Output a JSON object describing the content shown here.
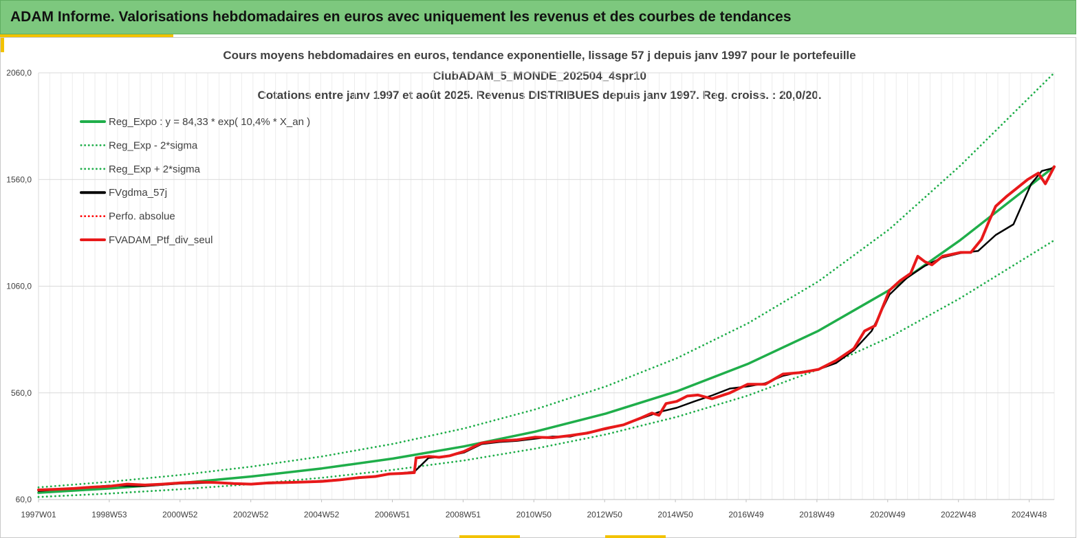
{
  "banner": {
    "title": "ADAM Informe. Valorisations hebdomadaires en euros avec uniquement les revenus et des courbes de tendances"
  },
  "colors": {
    "banner_bg": "#7dc87e",
    "accent": "#f2c200",
    "trend": "#1fae4a",
    "gdma": "#000000",
    "perf": "#ff0000",
    "ptf": "#e8191a"
  },
  "chart_data": {
    "type": "line",
    "title_lines": [
      "Cours moyens hebdomadaires  en euros, tendance exponentielle, lissage 57 j depuis janv 1997 pour le portefeuille",
      "ClubADAM_5_MONDE_202504_4spr10",
      "Cotations  entre janv 1997 et août 2025. Revenus DISTRIBUES depuis janv 1997. Reg. croiss. : 20,0/20."
    ],
    "x_tick_labels": [
      "1997W01",
      "1998W53",
      "2000W52",
      "2002W52",
      "2004W52",
      "2006W51",
      "2008W51",
      "2010W50",
      "2012W50",
      "2014W50",
      "2016W49",
      "2018W49",
      "2020W49",
      "2022W48",
      "2024W48"
    ],
    "x_range": [
      1997.0,
      2025.65
    ],
    "y_ticks": [
      60,
      560,
      1060,
      1560,
      2060
    ],
    "y_tick_labels": [
      "60,0",
      "560,0",
      "1060,0",
      "1560,0",
      "2060,0"
    ],
    "ylim": [
      60,
      2060
    ],
    "grid": true,
    "legend_position": "top-left",
    "series": [
      {
        "name": "Reg_Expo : y = 84,33 * exp( 10,4% *  X_an )",
        "style": "solid",
        "color": "#1fae4a",
        "x": [
          1997.0,
          1999.0,
          2001.0,
          2003.0,
          2005.0,
          2007.0,
          2009.0,
          2011.0,
          2013.0,
          2015.0,
          2017.0,
          2019.0,
          2021.0,
          2023.0,
          2025.65
        ],
        "y": [
          92,
          112,
          137,
          168,
          206,
          252,
          309,
          378,
          463,
          567,
          695,
          851,
          1042,
          1276,
          1620
        ]
      },
      {
        "name": "Reg_Exp - 2*sigma",
        "style": "dotted",
        "color": "#1fae4a",
        "x": [
          1997.0,
          1999.0,
          2001.0,
          2003.0,
          2005.0,
          2007.0,
          2009.0,
          2011.0,
          2013.0,
          2015.0,
          2017.0,
          2019.0,
          2021.0,
          2023.0,
          2025.65
        ],
        "y": [
          72,
          88,
          108,
          132,
          162,
          199,
          243,
          298,
          365,
          447,
          547,
          670,
          820,
          1004,
          1275
        ]
      },
      {
        "name": "Reg_Exp + 2*sigma",
        "style": "dotted",
        "color": "#1fae4a",
        "x": [
          1997.0,
          1999.0,
          2001.0,
          2003.0,
          2005.0,
          2007.0,
          2009.0,
          2011.0,
          2013.0,
          2015.0,
          2017.0,
          2019.0,
          2021.0,
          2023.0,
          2025.65
        ],
        "y": [
          117,
          143,
          175,
          214,
          262,
          321,
          393,
          482,
          590,
          722,
          885,
          1083,
          1327,
          1625,
          2060
        ]
      },
      {
        "name": "FVgdma_57j",
        "style": "solid",
        "color": "#000000",
        "x": [
          1997.0,
          1998.0,
          1999.0,
          2000.0,
          2001.0,
          2002.0,
          2003.0,
          2004.0,
          2005.0,
          2006.0,
          2006.9,
          2007.6,
          2008.0,
          2008.5,
          2009.0,
          2009.5,
          2010.0,
          2010.5,
          2011.0,
          2011.5,
          2012.0,
          2012.5,
          2013.0,
          2013.5,
          2014.0,
          2014.5,
          2015.0,
          2015.5,
          2016.0,
          2016.5,
          2017.0,
          2017.5,
          2018.0,
          2018.5,
          2019.0,
          2019.5,
          2020.0,
          2020.5,
          2021.0,
          2021.5,
          2022.0,
          2022.5,
          2023.0,
          2023.5,
          2024.0,
          2024.5,
          2025.0,
          2025.3,
          2025.65
        ],
        "y": [
          100,
          113,
          125,
          123,
          135,
          140,
          133,
          138,
          148,
          160,
          178,
          190,
          255,
          262,
          280,
          320,
          330,
          335,
          345,
          355,
          355,
          375,
          390,
          410,
          440,
          470,
          490,
          520,
          548,
          580,
          590,
          605,
          640,
          658,
          670,
          700,
          760,
          850,
          1020,
          1100,
          1155,
          1195,
          1215,
          1225,
          1300,
          1350,
          1540,
          1600,
          1615
        ]
      },
      {
        "name": "Perfo. absolue",
        "style": "dotted",
        "color": "#ff0000",
        "x": [],
        "y": []
      },
      {
        "name": "FVADAM_Ptf_div_seul",
        "style": "solid-thick",
        "color": "#e8191a",
        "x": [
          1997.0,
          1997.5,
          1998.0,
          1998.5,
          1999.0,
          1999.5,
          2000.0,
          2000.5,
          2001.0,
          2001.5,
          2002.0,
          2002.5,
          2003.0,
          2003.5,
          2004.0,
          2004.5,
          2005.0,
          2005.5,
          2006.0,
          2006.5,
          2006.9,
          2007.2,
          2007.6,
          2007.65,
          2008.0,
          2008.3,
          2008.6,
          2009.0,
          2009.5,
          2010.0,
          2010.5,
          2011.0,
          2011.5,
          2012.0,
          2012.5,
          2013.0,
          2013.5,
          2014.0,
          2014.3,
          2014.5,
          2014.7,
          2015.0,
          2015.3,
          2015.6,
          2016.0,
          2016.5,
          2017.0,
          2017.5,
          2018.0,
          2018.5,
          2019.0,
          2019.5,
          2020.0,
          2020.3,
          2020.6,
          2021.0,
          2021.3,
          2021.6,
          2021.8,
          2022.0,
          2022.2,
          2022.5,
          2023.0,
          2023.3,
          2023.6,
          2023.8,
          2024.0,
          2024.3,
          2024.6,
          2024.9,
          2025.2,
          2025.4,
          2025.65
        ],
        "y": [
          105,
          108,
          112,
          118,
          122,
          132,
          128,
          132,
          138,
          142,
          140,
          135,
          132,
          138,
          140,
          142,
          145,
          152,
          162,
          168,
          180,
          182,
          186,
          255,
          262,
          258,
          265,
          285,
          325,
          335,
          340,
          352,
          350,
          360,
          372,
          393,
          410,
          443,
          465,
          455,
          510,
          520,
          545,
          550,
          532,
          560,
          600,
          600,
          648,
          655,
          670,
          712,
          768,
          850,
          875,
          1040,
          1085,
          1120,
          1200,
          1175,
          1160,
          1200,
          1218,
          1218,
          1280,
          1360,
          1435,
          1480,
          1520,
          1560,
          1590,
          1540,
          1620
        ]
      }
    ]
  }
}
